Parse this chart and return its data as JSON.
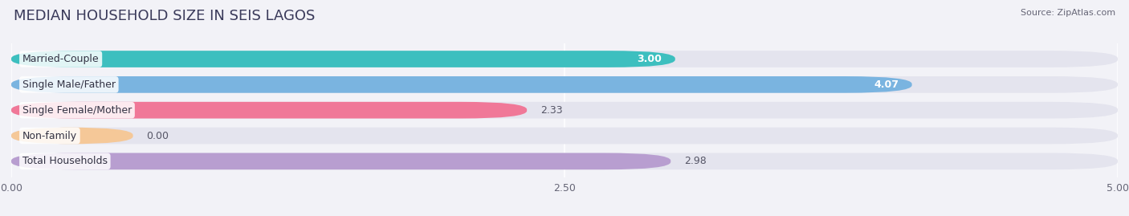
{
  "title": "MEDIAN HOUSEHOLD SIZE IN SEIS LAGOS",
  "source": "Source: ZipAtlas.com",
  "categories": [
    "Married-Couple",
    "Single Male/Father",
    "Single Female/Mother",
    "Non-family",
    "Total Households"
  ],
  "values": [
    3.0,
    4.07,
    2.33,
    0.0,
    2.98
  ],
  "bar_colors": [
    "#3dbfbf",
    "#7ab4e0",
    "#f07898",
    "#f5c898",
    "#b89ed0"
  ],
  "value_inside": [
    true,
    true,
    false,
    false,
    false
  ],
  "xlim": [
    0,
    5.0
  ],
  "xticks": [
    0.0,
    2.5,
    5.0
  ],
  "xtick_labels": [
    "0.00",
    "2.50",
    "5.00"
  ],
  "background_color": "#f2f2f7",
  "bar_background": "#e4e4ee",
  "bar_row_bg": "#ebebf2",
  "title_fontsize": 13,
  "label_fontsize": 9,
  "value_fontsize": 9,
  "nonfamily_stub": 0.55
}
